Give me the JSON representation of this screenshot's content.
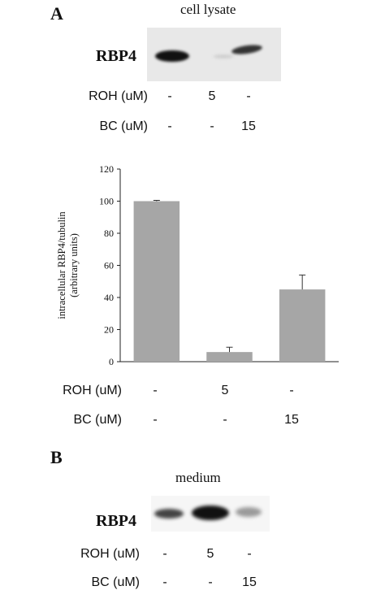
{
  "panel_a": {
    "letter": "A",
    "blot_title": "cell lysate",
    "protein": "RBP4",
    "conditions": [
      {
        "label": "ROH (uM)",
        "values": [
          "-",
          "5",
          "-"
        ]
      },
      {
        "label": "BC (uM)",
        "values": [
          "-",
          "-",
          "15"
        ]
      }
    ]
  },
  "chart_conditions": [
    {
      "label": "ROH (uM)",
      "values": [
        "-",
        "5",
        "-"
      ]
    },
    {
      "label": "BC (uM)",
      "values": [
        "-",
        "-",
        "15"
      ]
    }
  ],
  "panel_b": {
    "letter": "B",
    "blot_title": "medium",
    "protein": "RBP4",
    "conditions": [
      {
        "label": "ROH (uM)",
        "values": [
          "-",
          "5",
          "-"
        ]
      },
      {
        "label": "BC (uM)",
        "values": [
          "-",
          "-",
          "15"
        ]
      }
    ]
  },
  "chart_data": {
    "type": "bar",
    "categories": [
      "",
      "",
      ""
    ],
    "values": [
      100,
      6,
      45
    ],
    "errors": [
      0.5,
      3,
      9
    ],
    "ylabel": "intracellular RBP4/tubulin (arbitrary units)",
    "ylabel_lines": [
      "intracellular RBP4/tubulin",
      "(arbitrary units)"
    ],
    "ylim": [
      0,
      120
    ],
    "yticks": [
      0,
      20,
      40,
      60,
      80,
      100,
      120
    ],
    "bar_color": "#a6a6a6",
    "grid": false
  }
}
